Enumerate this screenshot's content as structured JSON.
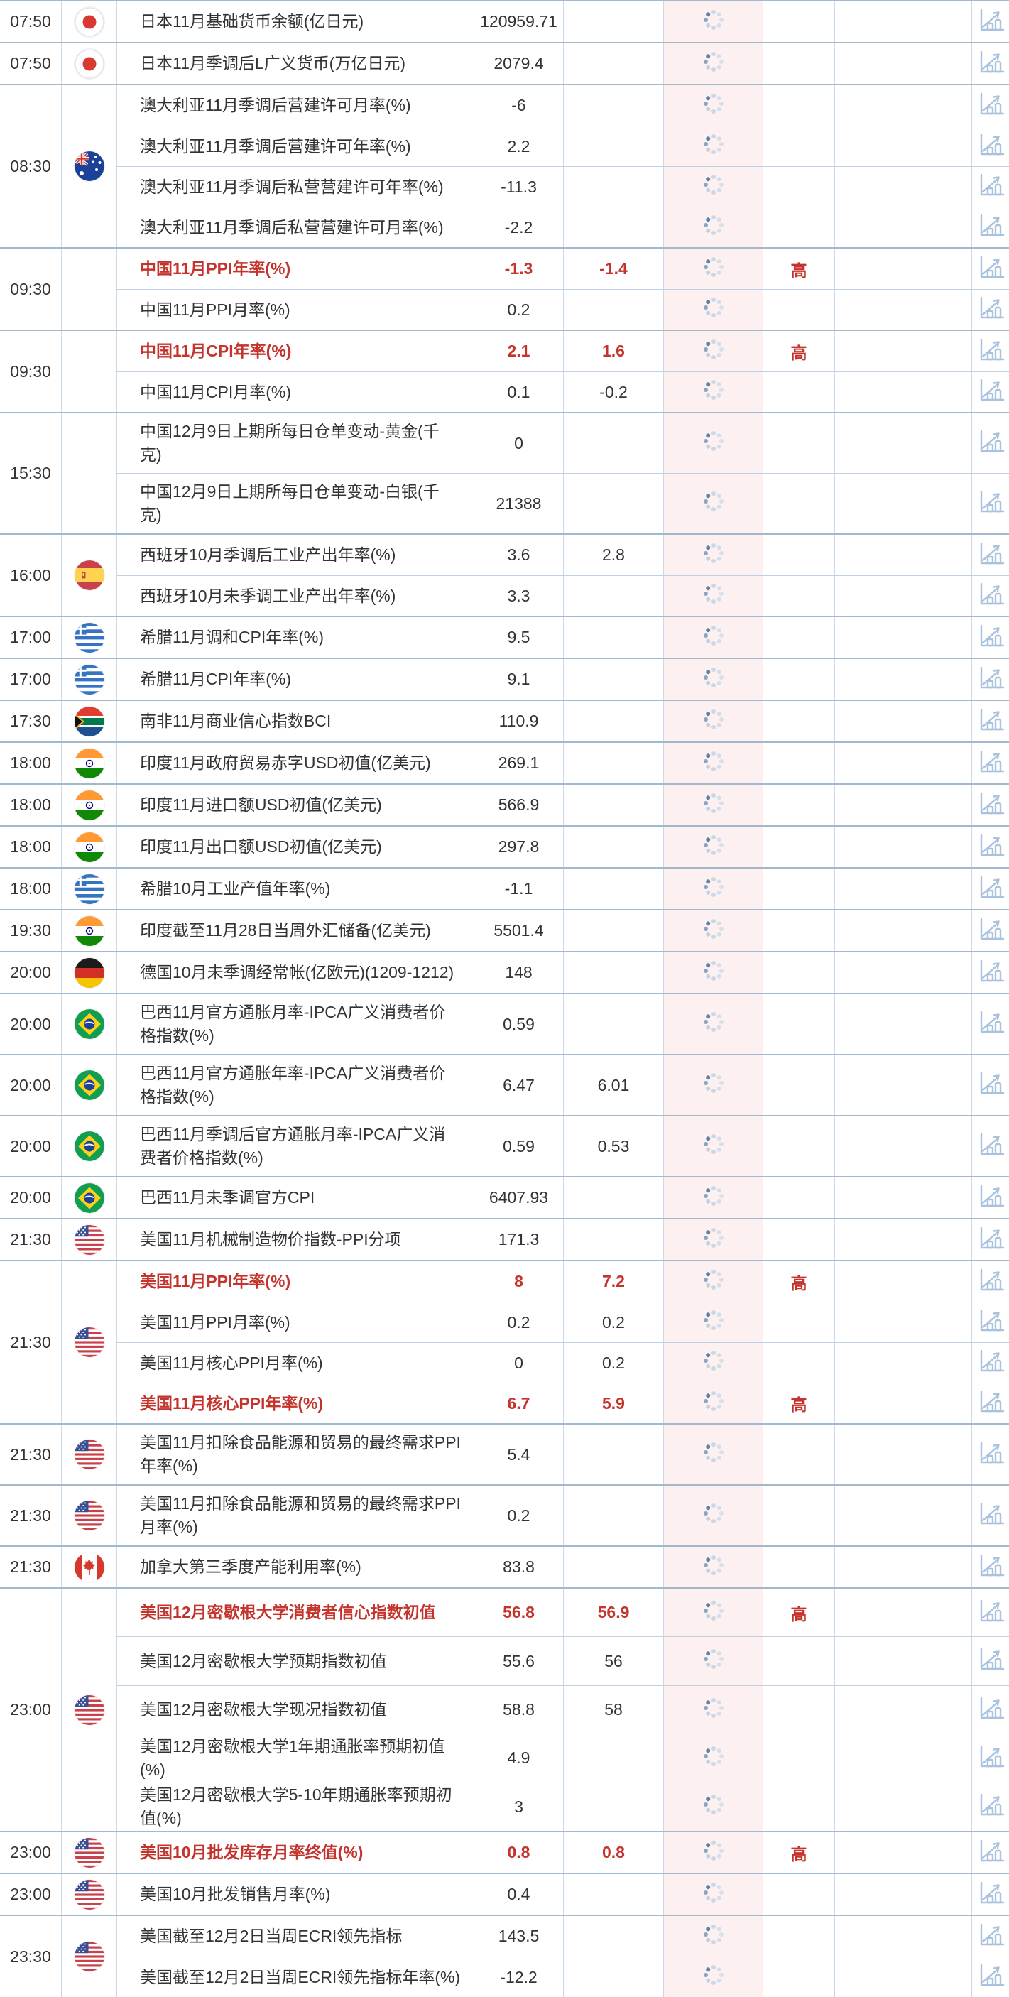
{
  "table": {
    "importance_high_label": "高",
    "icons": {
      "loading": "loading-spinner-icon",
      "chart": "bar-chart-icon"
    },
    "colors": {
      "accent_red": "#c5332d",
      "loading_column_bg": "#fcf1f0",
      "icon_blue": "#a9c2dd",
      "row_border": "#bfd1e2",
      "group_border": "#a3b8cb"
    },
    "groups": [
      {
        "time": "07:50",
        "country": "japan",
        "rows": [
          {
            "name": "日本11月基础货币余额(亿日元)",
            "actual": "120959.71",
            "forecast": "",
            "importance": "",
            "highlight": false
          }
        ]
      },
      {
        "time": "07:50",
        "country": "japan",
        "rows": [
          {
            "name": "日本11月季调后L广义货币(万亿日元)",
            "actual": "2079.4",
            "forecast": "",
            "importance": "",
            "highlight": false
          }
        ]
      },
      {
        "time": "08:30",
        "country": "australia",
        "rows": [
          {
            "name": "澳大利亚11月季调后营建许可月率(%)",
            "actual": "-6",
            "forecast": "",
            "importance": "",
            "highlight": false
          },
          {
            "name": "澳大利亚11月季调后营建许可年率(%)",
            "actual": "2.2",
            "forecast": "",
            "importance": "",
            "highlight": false
          },
          {
            "name": "澳大利亚11月季调后私营营建许可年率(%)",
            "actual": "-11.3",
            "forecast": "",
            "importance": "",
            "highlight": false
          },
          {
            "name": "澳大利亚11月季调后私营营建许可月率(%)",
            "actual": "-2.2",
            "forecast": "",
            "importance": "",
            "highlight": false
          }
        ]
      },
      {
        "time": "09:30",
        "country": null,
        "rows": [
          {
            "name": "中国11月PPI年率(%)",
            "actual": "-1.3",
            "forecast": "-1.4",
            "importance": "高",
            "highlight": true
          },
          {
            "name": "中国11月PPI月率(%)",
            "actual": "0.2",
            "forecast": "",
            "importance": "",
            "highlight": false
          }
        ]
      },
      {
        "time": "09:30",
        "country": null,
        "rows": [
          {
            "name": "中国11月CPI年率(%)",
            "actual": "2.1",
            "forecast": "1.6",
            "importance": "高",
            "highlight": true
          },
          {
            "name": "中国11月CPI月率(%)",
            "actual": "0.1",
            "forecast": "-0.2",
            "importance": "",
            "highlight": false
          }
        ]
      },
      {
        "time": "15:30",
        "country": null,
        "rows": [
          {
            "name": "中国12月9日上期所每日仓单变动-黄金(千克)",
            "actual": "0",
            "forecast": "",
            "importance": "",
            "highlight": false
          },
          {
            "name": "中国12月9日上期所每日仓单变动-白银(千克)",
            "actual": "21388",
            "forecast": "",
            "importance": "",
            "highlight": false
          }
        ]
      },
      {
        "time": "16:00",
        "country": "spain",
        "rows": [
          {
            "name": "西班牙10月季调后工业产出年率(%)",
            "actual": "3.6",
            "forecast": "2.8",
            "importance": "",
            "highlight": false
          },
          {
            "name": "西班牙10月未季调工业产出年率(%)",
            "actual": "3.3",
            "forecast": "",
            "importance": "",
            "highlight": false
          }
        ]
      },
      {
        "time": "17:00",
        "country": "greece",
        "rows": [
          {
            "name": "希腊11月调和CPI年率(%)",
            "actual": "9.5",
            "forecast": "",
            "importance": "",
            "highlight": false
          }
        ]
      },
      {
        "time": "17:00",
        "country": "greece",
        "rows": [
          {
            "name": "希腊11月CPI年率(%)",
            "actual": "9.1",
            "forecast": "",
            "importance": "",
            "highlight": false
          }
        ]
      },
      {
        "time": "17:30",
        "country": "south-africa",
        "rows": [
          {
            "name": "南非11月商业信心指数BCI",
            "actual": "110.9",
            "forecast": "",
            "importance": "",
            "highlight": false
          }
        ]
      },
      {
        "time": "18:00",
        "country": "india",
        "rows": [
          {
            "name": "印度11月政府贸易赤字USD初值(亿美元)",
            "actual": "269.1",
            "forecast": "",
            "importance": "",
            "highlight": false
          }
        ]
      },
      {
        "time": "18:00",
        "country": "india",
        "rows": [
          {
            "name": "印度11月进口额USD初值(亿美元)",
            "actual": "566.9",
            "forecast": "",
            "importance": "",
            "highlight": false
          }
        ]
      },
      {
        "time": "18:00",
        "country": "india",
        "rows": [
          {
            "name": "印度11月出口额USD初值(亿美元)",
            "actual": "297.8",
            "forecast": "",
            "importance": "",
            "highlight": false
          }
        ]
      },
      {
        "time": "18:00",
        "country": "greece",
        "rows": [
          {
            "name": "希腊10月工业产值年率(%)",
            "actual": "-1.1",
            "forecast": "",
            "importance": "",
            "highlight": false
          }
        ]
      },
      {
        "time": "19:30",
        "country": "india",
        "rows": [
          {
            "name": "印度截至11月28日当周外汇储备(亿美元)",
            "actual": "5501.4",
            "forecast": "",
            "importance": "",
            "highlight": false
          }
        ]
      },
      {
        "time": "20:00",
        "country": "germany",
        "rows": [
          {
            "name": "德国10月未季调经常帐(亿欧元)(1209-1212)",
            "actual": "148",
            "forecast": "",
            "importance": "",
            "highlight": false
          }
        ]
      },
      {
        "time": "20:00",
        "country": "brazil",
        "rows": [
          {
            "name": "巴西11月官方通胀月率-IPCA广义消费者价格指数(%)",
            "actual": "0.59",
            "forecast": "",
            "importance": "",
            "highlight": false
          }
        ]
      },
      {
        "time": "20:00",
        "country": "brazil",
        "rows": [
          {
            "name": "巴西11月官方通胀年率-IPCA广义消费者价格指数(%)",
            "actual": "6.47",
            "forecast": "6.01",
            "importance": "",
            "highlight": false
          }
        ]
      },
      {
        "time": "20:00",
        "country": "brazil",
        "rows": [
          {
            "name": "巴西11月季调后官方通胀月率-IPCA广义消费者价格指数(%)",
            "actual": "0.59",
            "forecast": "0.53",
            "importance": "",
            "highlight": false
          }
        ]
      },
      {
        "time": "20:00",
        "country": "brazil",
        "rows": [
          {
            "name": "巴西11月未季调官方CPI",
            "actual": "6407.93",
            "forecast": "",
            "importance": "",
            "highlight": false
          }
        ]
      },
      {
        "time": "21:30",
        "country": "us",
        "rows": [
          {
            "name": "美国11月机械制造物价指数-PPI分项",
            "actual": "171.3",
            "forecast": "",
            "importance": "",
            "highlight": false
          }
        ]
      },
      {
        "time": "21:30",
        "country": "us",
        "rows": [
          {
            "name": "美国11月PPI年率(%)",
            "actual": "8",
            "forecast": "7.2",
            "importance": "高",
            "highlight": true
          },
          {
            "name": "美国11月PPI月率(%)",
            "actual": "0.2",
            "forecast": "0.2",
            "importance": "",
            "highlight": false
          },
          {
            "name": "美国11月核心PPI月率(%)",
            "actual": "0",
            "forecast": "0.2",
            "importance": "",
            "highlight": false
          },
          {
            "name": "美国11月核心PPI年率(%)",
            "actual": "6.7",
            "forecast": "5.9",
            "importance": "高",
            "highlight": true
          }
        ]
      },
      {
        "time": "21:30",
        "country": "us",
        "rows": [
          {
            "name": "美国11月扣除食品能源和贸易的最终需求PPI年率(%)",
            "actual": "5.4",
            "forecast": "",
            "importance": "",
            "highlight": false
          }
        ]
      },
      {
        "time": "21:30",
        "country": "us",
        "rows": [
          {
            "name": "美国11月扣除食品能源和贸易的最终需求PPI月率(%)",
            "actual": "0.2",
            "forecast": "",
            "importance": "",
            "highlight": false
          }
        ]
      },
      {
        "time": "21:30",
        "country": "canada",
        "rows": [
          {
            "name": "加拿大第三季度产能利用率(%)",
            "actual": "83.8",
            "forecast": "",
            "importance": "",
            "highlight": false
          }
        ]
      },
      {
        "time": "23:00",
        "country": "us",
        "rows": [
          {
            "name": "美国12月密歇根大学消费者信心指数初值",
            "actual": "56.8",
            "forecast": "56.9",
            "importance": "高",
            "highlight": true
          },
          {
            "name": "美国12月密歇根大学预期指数初值",
            "actual": "55.6",
            "forecast": "56",
            "importance": "",
            "highlight": false
          },
          {
            "name": "美国12月密歇根大学现况指数初值",
            "actual": "58.8",
            "forecast": "58",
            "importance": "",
            "highlight": false
          },
          {
            "name": "美国12月密歇根大学1年期通胀率预期初值(%)",
            "actual": "4.9",
            "forecast": "",
            "importance": "",
            "highlight": false
          },
          {
            "name": "美国12月密歇根大学5-10年期通胀率预期初值(%)",
            "actual": "3",
            "forecast": "",
            "importance": "",
            "highlight": false
          }
        ]
      },
      {
        "time": "23:00",
        "country": "us",
        "rows": [
          {
            "name": "美国10月批发库存月率终值(%)",
            "actual": "0.8",
            "forecast": "0.8",
            "importance": "高",
            "highlight": true
          }
        ]
      },
      {
        "time": "23:00",
        "country": "us",
        "rows": [
          {
            "name": "美国10月批发销售月率(%)",
            "actual": "0.4",
            "forecast": "",
            "importance": "",
            "highlight": false
          }
        ]
      },
      {
        "time": "23:30",
        "country": "us",
        "rows": [
          {
            "name": "美国截至12月2日当周ECRI领先指标",
            "actual": "143.5",
            "forecast": "",
            "importance": "",
            "highlight": false
          },
          {
            "name": "美国截至12月2日当周ECRI领先指标年率(%)",
            "actual": "-12.2",
            "forecast": "",
            "importance": "",
            "highlight": false
          }
        ]
      }
    ]
  }
}
